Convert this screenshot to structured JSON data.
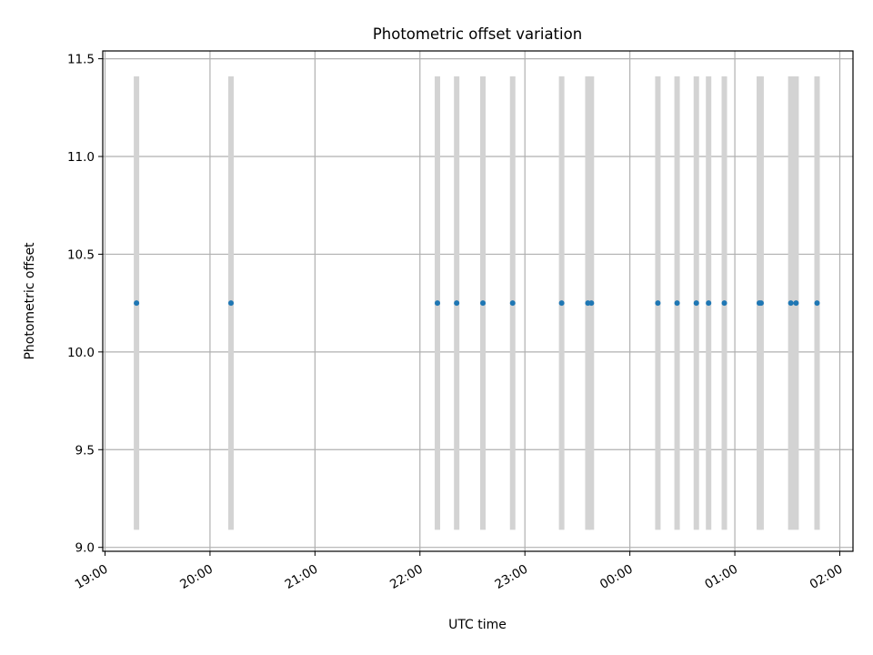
{
  "chart_data": {
    "type": "scatter",
    "title": "Photometric offset variation",
    "xlabel": "UTC time",
    "ylabel": "Photometric offset",
    "x_axis": {
      "kind": "time",
      "start": "19:00",
      "end": "02:00",
      "ticks": [
        "19:00",
        "20:00",
        "21:00",
        "22:00",
        "23:00",
        "00:00",
        "01:00",
        "02:00"
      ],
      "tick_label_rotation_deg": 30
    },
    "ylim": [
      8.98,
      11.54
    ],
    "yticks": [
      9.0,
      9.5,
      10.0,
      10.5,
      11.0,
      11.5
    ],
    "ytick_labels": [
      "9.0",
      "9.5",
      "10.0",
      "10.5",
      "11.0",
      "11.5"
    ],
    "grid": true,
    "span_bands": {
      "color": "#d3d3d3",
      "y_range": [
        9.09,
        11.41
      ],
      "times": [
        "19:18",
        "20:12",
        "22:10",
        "22:21",
        "22:36",
        "22:53",
        "23:21",
        "23:36",
        "23:38",
        "00:16",
        "00:27",
        "00:38",
        "00:45",
        "00:54",
        "01:14",
        "01:15",
        "01:32",
        "01:35",
        "01:47"
      ]
    },
    "series": [
      {
        "color": "#1f77b4",
        "x": [
          "19:18",
          "20:12",
          "22:10",
          "22:21",
          "22:36",
          "22:53",
          "23:21",
          "23:36",
          "23:38",
          "00:16",
          "00:27",
          "00:38",
          "00:45",
          "00:54",
          "01:14",
          "01:15",
          "01:32",
          "01:35",
          "01:47"
        ],
        "y": [
          10.25,
          10.25,
          10.25,
          10.25,
          10.25,
          10.25,
          10.25,
          10.25,
          10.25,
          10.25,
          10.25,
          10.25,
          10.25,
          10.25,
          10.25,
          10.25,
          10.25,
          10.25,
          10.25
        ]
      }
    ]
  }
}
